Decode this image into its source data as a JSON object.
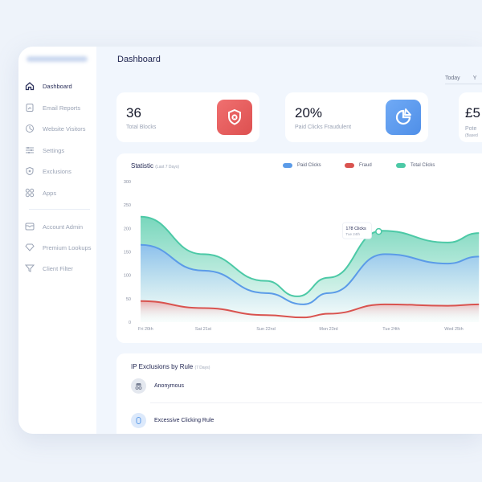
{
  "header": {
    "title": "Dashboard",
    "tabs": [
      "Today",
      "Y"
    ]
  },
  "sidebar": {
    "items": [
      {
        "label": "Dashboard",
        "icon": "home-icon"
      },
      {
        "label": "Email Reports",
        "icon": "report-icon"
      },
      {
        "label": "Website Visitors",
        "icon": "visitors-icon"
      },
      {
        "label": "Settings",
        "icon": "sliders-icon"
      },
      {
        "label": "Exclusions",
        "icon": "shield-x-icon"
      },
      {
        "label": "Apps",
        "icon": "grid-icon"
      },
      {
        "label": "Account Admin",
        "icon": "inbox-icon"
      },
      {
        "label": "Premium Lookups",
        "icon": "diamond-icon"
      },
      {
        "label": "Client Filter",
        "icon": "filter-icon"
      }
    ]
  },
  "stats": [
    {
      "value": "36",
      "label": "Total Blocks",
      "color": "#e85d5d"
    },
    {
      "value": "20%",
      "label": "Paid Clicks Fraudulent",
      "color": "#5d9cf0"
    },
    {
      "value": "£5",
      "label": "Pote",
      "sub": "(Based"
    }
  ],
  "chart_data": {
    "type": "area",
    "title": "Statistic",
    "subtitle": "(Last 7 Days)",
    "categories": [
      "Fri 20th",
      "Sat 21st",
      "Sun 22nd",
      "Mon 23rd",
      "Tue 24th",
      "Wed 25th"
    ],
    "yticks": [
      0,
      50,
      100,
      150,
      200,
      250,
      300
    ],
    "ylim": [
      0,
      300
    ],
    "series": [
      {
        "name": "Paid Clicks",
        "color": "#5b9be8",
        "x": [
          0,
          1,
          2,
          2.6,
          3,
          3.9,
          4.9,
          5.4
        ],
        "values": [
          165,
          110,
          62,
          38,
          62,
          145,
          125,
          140
        ]
      },
      {
        "name": "Fraud",
        "color": "#d9534f",
        "x": [
          0,
          1,
          2,
          2.6,
          3,
          3.9,
          4.9,
          5.4
        ],
        "values": [
          45,
          30,
          15,
          10,
          18,
          38,
          35,
          38
        ]
      },
      {
        "name": "Total Clicks",
        "color": "#4cc9a6",
        "x": [
          0,
          1,
          2,
          2.5,
          3,
          3.85,
          4.9,
          5.4
        ],
        "values": [
          225,
          145,
          88,
          55,
          95,
          195,
          170,
          190
        ]
      }
    ],
    "tooltip": {
      "value": "178 Clicks",
      "label": "Tue 24th",
      "x": 3.8,
      "y": 190
    }
  },
  "exclusions": {
    "title": "IP Exclusions by Rule",
    "subtitle": "(7 Days)",
    "rules": [
      "Anonymous",
      "Excessive Clicking Rule"
    ]
  }
}
